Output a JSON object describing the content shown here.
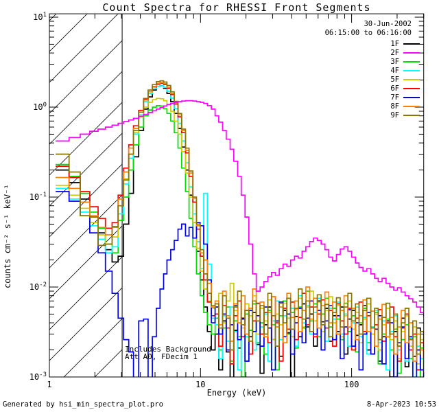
{
  "title": "Count Spectra for RHESSI Front Segments",
  "header": {
    "date": "30-Jun-2002",
    "time_range": "06:15:00 to 06:16:00"
  },
  "annotations": {
    "line1": "Includes Background",
    "line2": "Att A0, FDecim 1"
  },
  "footer": {
    "left": "Generated by hsi_min_spectra_plot.pro",
    "right": "8-Apr-2023 10:53"
  },
  "chart_data": {
    "type": "line",
    "mode": "histogram-steps",
    "title": "Count Spectra for RHESSI Front Segments",
    "xlabel": "Energy (keV)",
    "ylabel": "counts cm⁻² s⁻¹ keV⁻¹",
    "xscale": "log",
    "yscale": "log",
    "grid": false,
    "legend_position": "top-right",
    "xlim": [
      1,
      300
    ],
    "ylim": [
      0.001,
      10.9
    ],
    "x_ticks": [
      {
        "label": "1",
        "value": 1
      },
      {
        "label": "10",
        "value": 10
      },
      {
        "label": "100",
        "value": 100
      }
    ],
    "y_ticks": [
      {
        "base": "10",
        "exp": "1",
        "value": 10
      },
      {
        "base": "10",
        "exp": "0",
        "value": 1
      },
      {
        "base": "10",
        "exp": "-1",
        "value": 0.1
      },
      {
        "base": "10",
        "exp": "-2",
        "value": 0.01
      },
      {
        "base": "10",
        "exp": "-3",
        "value": 0.001
      }
    ],
    "hatched_region_kev": [
      1,
      3.03
    ],
    "draw_order": [
      "1F",
      "3F",
      "4F",
      "5F",
      "6F",
      "7F",
      "8F",
      "9F",
      "2F"
    ],
    "energies_kev": [
      1.1,
      1.35,
      1.6,
      1.85,
      2.1,
      2.35,
      2.6,
      2.85,
      3.1,
      3.35,
      3.6,
      3.9,
      4.2,
      4.5,
      4.8,
      5.1,
      5.4,
      5.7,
      6.0,
      6.35,
      6.7,
      7.1,
      7.5,
      7.95,
      8.4,
      8.9,
      9.4,
      9.95,
      10.5,
      11.1,
      11.8,
      12.5,
      13.2,
      14.0,
      14.8,
      15.7,
      16.6,
      17.6,
      18.6,
      19.7,
      20.9,
      22.1,
      23.4,
      24.8,
      26.3,
      27.9,
      29.5,
      31.3,
      33.2,
      35.2,
      37.3,
      39.5,
      41.9,
      44.4,
      47.0,
      49.8,
      52.8,
      56.0,
      59.3,
      62.9,
      66.6,
      70.6,
      74.9,
      79.4,
      84.1,
      89.1,
      94.5,
      100,
      106,
      112,
      119,
      126,
      134,
      142,
      150,
      159,
      169,
      179,
      190,
      201,
      213,
      226,
      239,
      254,
      269,
      285,
      300
    ],
    "series": [
      {
        "name": "1F",
        "color": "#000000",
        "values": [
          0.2,
          0.145,
          0.095,
          0.06,
          0.04,
          0.026,
          0.019,
          0.022,
          0.05,
          0.11,
          0.28,
          0.55,
          0.95,
          1.3,
          1.55,
          1.7,
          1.72,
          1.62,
          1.42,
          1.15,
          0.85,
          0.58,
          0.36,
          0.2,
          0.105,
          0.052,
          0.025,
          0.012,
          0.006,
          0.0032,
          0.002,
          0.003,
          0.0012,
          0.0042,
          0.0019,
          0.0008,
          0.0033,
          0.0021,
          0.0045,
          0.0015,
          0.0028,
          0.0052,
          0.0023,
          0.0011,
          0.0038,
          0.006,
          0.0026,
          0.0042,
          0.0017,
          0.0055,
          0.0031,
          0.0009,
          0.0047,
          0.0028,
          0.0065,
          0.0036,
          0.005,
          0.0022,
          0.007,
          0.0041,
          0.0058,
          0.0025,
          0.0048,
          0.0032,
          0.006,
          0.0018,
          0.0044,
          0.0055,
          0.0029,
          0.0038,
          0.0062,
          0.002,
          0.0035,
          0.005,
          0.0015,
          0.0028,
          0.0042,
          0.001,
          0.0032,
          0.0022,
          0.0045,
          0.0013,
          0.0026,
          0.0017,
          0.0035,
          0.0008,
          0.0019
        ]
      },
      {
        "name": "2F",
        "color": "#FF00FF",
        "values": [
          0.42,
          0.46,
          0.5,
          0.54,
          0.57,
          0.6,
          0.63,
          0.66,
          0.69,
          0.72,
          0.75,
          0.79,
          0.83,
          0.87,
          0.91,
          0.95,
          0.99,
          1.03,
          1.07,
          1.1,
          1.13,
          1.15,
          1.17,
          1.18,
          1.18,
          1.17,
          1.15,
          1.13,
          1.1,
          1.04,
          0.95,
          0.8,
          0.68,
          0.55,
          0.44,
          0.34,
          0.25,
          0.17,
          0.105,
          0.06,
          0.03,
          0.014,
          0.009,
          0.01,
          0.0115,
          0.013,
          0.0145,
          0.0135,
          0.016,
          0.018,
          0.017,
          0.02,
          0.022,
          0.021,
          0.025,
          0.028,
          0.032,
          0.035,
          0.033,
          0.03,
          0.026,
          0.0215,
          0.0195,
          0.023,
          0.0265,
          0.028,
          0.025,
          0.0215,
          0.0185,
          0.0165,
          0.015,
          0.016,
          0.014,
          0.0125,
          0.0115,
          0.0125,
          0.011,
          0.01,
          0.0092,
          0.0098,
          0.0088,
          0.008,
          0.0074,
          0.0068,
          0.006,
          0.0052,
          0.0047
        ]
      },
      {
        "name": "3F",
        "color": "#00E000",
        "values": [
          0.23,
          0.17,
          0.11,
          0.068,
          0.045,
          0.03,
          0.024,
          0.055,
          0.1,
          0.2,
          0.38,
          0.6,
          0.8,
          0.93,
          1.0,
          1.04,
          1.03,
          0.96,
          0.85,
          0.7,
          0.52,
          0.35,
          0.21,
          0.115,
          0.058,
          0.028,
          0.014,
          0.008,
          0.0052,
          0.0038,
          0.003,
          0.0045,
          0.002,
          0.0035,
          0.006,
          0.0015,
          0.0042,
          0.0028,
          0.001,
          0.005,
          0.0033,
          0.0065,
          0.0024,
          0.004,
          0.0018,
          0.0055,
          0.0038,
          0.0012,
          0.0048,
          0.007,
          0.003,
          0.0052,
          0.0021,
          0.006,
          0.0035,
          0.009,
          0.0042,
          0.0065,
          0.0028,
          0.005,
          0.0075,
          0.0036,
          0.0058,
          0.0044,
          0.0026,
          0.0066,
          0.0032,
          0.0048,
          0.0019,
          0.004,
          0.0058,
          0.0024,
          0.0036,
          0.0052,
          0.0014,
          0.003,
          0.0044,
          0.002,
          0.0034,
          0.0011,
          0.0026,
          0.0038,
          0.0016,
          0.0028,
          0.0009,
          0.0021,
          0.0013
        ]
      },
      {
        "name": "4F",
        "color": "#00FFFF",
        "values": [
          0.125,
          0.095,
          0.068,
          0.048,
          0.034,
          0.024,
          0.028,
          0.065,
          0.14,
          0.27,
          0.5,
          0.82,
          1.15,
          1.42,
          1.6,
          1.7,
          1.72,
          1.66,
          1.5,
          1.26,
          0.96,
          0.66,
          0.42,
          0.24,
          0.13,
          0.065,
          0.032,
          0.016,
          0.11,
          0.018,
          0.0045,
          0.0038,
          0.0016,
          0.0048,
          0.0025,
          0.006,
          0.0032,
          0.0012,
          0.0044,
          0.0028,
          0.0055,
          0.002,
          0.0065,
          0.0036,
          0.005,
          0.0015,
          0.0042,
          0.007,
          0.0026,
          0.0048,
          0.0034,
          0.0058,
          0.0022,
          0.008,
          0.004,
          0.0062,
          0.003,
          0.0052,
          0.0075,
          0.0038,
          0.0025,
          0.0058,
          0.0044,
          0.0068,
          0.003,
          0.005,
          0.0022,
          0.004,
          0.006,
          0.0028,
          0.0046,
          0.0018,
          0.0036,
          0.0055,
          0.0024,
          0.0042,
          0.0012,
          0.0032,
          0.0048,
          0.002,
          0.0035,
          0.0015,
          0.0027,
          0.001,
          0.0022,
          0.0016,
          0.0008
        ]
      },
      {
        "name": "5F",
        "color": "#CDCD00",
        "values": [
          0.135,
          0.105,
          0.075,
          0.052,
          0.038,
          0.03,
          0.036,
          0.08,
          0.16,
          0.3,
          0.52,
          0.78,
          1.0,
          1.13,
          1.21,
          1.25,
          1.24,
          1.18,
          1.07,
          0.9,
          0.7,
          0.5,
          0.32,
          0.185,
          0.1,
          0.052,
          0.027,
          0.015,
          0.0095,
          0.007,
          0.0058,
          0.006,
          0.0085,
          0.004,
          0.007,
          0.011,
          0.0055,
          0.009,
          0.0035,
          0.0065,
          0.0048,
          0.008,
          0.003,
          0.0058,
          0.0042,
          0.0072,
          0.0026,
          0.005,
          0.0038,
          0.0066,
          0.0045,
          0.0028,
          0.0056,
          0.0075,
          0.0036,
          0.006,
          0.009,
          0.0042,
          0.0068,
          0.0032,
          0.0055,
          0.0078,
          0.004,
          0.0062,
          0.0028,
          0.0048,
          0.007,
          0.0034,
          0.0052,
          0.0024,
          0.0044,
          0.0065,
          0.003,
          0.005,
          0.002,
          0.0038,
          0.0058,
          0.0026,
          0.0042,
          0.0016,
          0.0032,
          0.0048,
          0.0022,
          0.0036,
          0.0014,
          0.0026,
          0.0018
        ]
      },
      {
        "name": "6F",
        "color": "#FF0000",
        "values": [
          0.22,
          0.165,
          0.115,
          0.078,
          0.058,
          0.045,
          0.052,
          0.105,
          0.21,
          0.38,
          0.62,
          0.92,
          1.22,
          1.48,
          1.68,
          1.8,
          1.84,
          1.78,
          1.62,
          1.38,
          1.08,
          0.78,
          0.52,
          0.31,
          0.17,
          0.088,
          0.044,
          0.022,
          0.012,
          0.0068,
          0.0048,
          0.005,
          0.0022,
          0.0062,
          0.0035,
          0.0014,
          0.0048,
          0.007,
          0.0028,
          0.0055,
          0.0018,
          0.0042,
          0.0066,
          0.003,
          0.0052,
          0.0024,
          0.0078,
          0.004,
          0.0015,
          0.0058,
          0.0034,
          0.0068,
          0.0026,
          0.0046,
          0.0085,
          0.0038,
          0.006,
          0.0028,
          0.005,
          0.0072,
          0.0035,
          0.0055,
          0.0022,
          0.0065,
          0.0042,
          0.003,
          0.0058,
          0.002,
          0.0045,
          0.0068,
          0.0032,
          0.0048,
          0.0018,
          0.0038,
          0.0056,
          0.0025,
          0.004,
          0.006,
          0.0028,
          0.0015,
          0.0035,
          0.005,
          0.002,
          0.003,
          0.0012,
          0.0024,
          0.0016
        ]
      },
      {
        "name": "7F",
        "color": "#0000EE",
        "values": [
          0.115,
          0.09,
          0.062,
          0.04,
          0.024,
          0.015,
          0.0085,
          0.0045,
          0.0026,
          0.0019,
          0.0009,
          0.0042,
          0.0044,
          0.0008,
          0.0028,
          0.0058,
          0.0095,
          0.014,
          0.02,
          0.026,
          0.033,
          0.044,
          0.05,
          0.037,
          0.046,
          0.035,
          0.052,
          0.048,
          0.03,
          0.012,
          0.004,
          0.006,
          0.003,
          0.005,
          0.002,
          0.0038,
          0.0062,
          0.0026,
          0.0044,
          0.0015,
          0.0055,
          0.0032,
          0.0048,
          0.0022,
          0.006,
          0.0035,
          0.0012,
          0.0042,
          0.0068,
          0.0028,
          0.005,
          0.0018,
          0.004,
          0.0058,
          0.0024,
          0.0045,
          0.007,
          0.003,
          0.0055,
          0.002,
          0.0042,
          0.0062,
          0.0026,
          0.0048,
          0.0016,
          0.0036,
          0.0056,
          0.0022,
          0.004,
          0.0012,
          0.003,
          0.0052,
          0.0018,
          0.0034,
          0.0048,
          0.0014,
          0.0028,
          0.004,
          0.001,
          0.0024,
          0.0036,
          0.0016,
          0.0028,
          0.0008,
          0.002,
          0.0012,
          0.0006
        ]
      },
      {
        "name": "8F",
        "color": "#FF8000",
        "values": [
          0.165,
          0.125,
          0.088,
          0.062,
          0.046,
          0.038,
          0.046,
          0.095,
          0.19,
          0.35,
          0.58,
          0.88,
          1.2,
          1.48,
          1.7,
          1.84,
          1.88,
          1.82,
          1.66,
          1.42,
          1.12,
          0.82,
          0.55,
          0.33,
          0.185,
          0.096,
          0.048,
          0.024,
          0.02,
          0.011,
          0.006,
          0.007,
          0.0038,
          0.009,
          0.0048,
          0.0025,
          0.0065,
          0.004,
          0.008,
          0.003,
          0.0058,
          0.0095,
          0.0042,
          0.0068,
          0.0028,
          0.0052,
          0.0078,
          0.0036,
          0.006,
          0.0024,
          0.0085,
          0.0046,
          0.007,
          0.0032,
          0.0055,
          0.01,
          0.0044,
          0.0075,
          0.0035,
          0.0062,
          0.0088,
          0.004,
          0.0068,
          0.003,
          0.0055,
          0.008,
          0.0036,
          0.0058,
          0.0026,
          0.0048,
          0.0072,
          0.0032,
          0.0054,
          0.0022,
          0.0044,
          0.0064,
          0.0028,
          0.0046,
          0.0018,
          0.0036,
          0.0055,
          0.0024,
          0.004,
          0.0015,
          0.003,
          0.002,
          0.0011
        ]
      },
      {
        "name": "9F",
        "color": "#8B7500",
        "values": [
          0.3,
          0.19,
          0.062,
          0.06,
          0.029,
          0.03,
          0.047,
          0.08,
          0.155,
          0.3,
          0.55,
          0.88,
          1.25,
          1.55,
          1.78,
          1.92,
          1.96,
          1.9,
          1.74,
          1.48,
          1.16,
          0.85,
          0.57,
          0.35,
          0.195,
          0.1,
          0.05,
          0.026,
          0.014,
          0.0085,
          0.0062,
          0.0065,
          0.0035,
          0.008,
          0.0045,
          0.002,
          0.006,
          0.009,
          0.0038,
          0.0055,
          0.0025,
          0.007,
          0.0042,
          0.0062,
          0.003,
          0.0085,
          0.0048,
          0.0022,
          0.0066,
          0.004,
          0.0075,
          0.0034,
          0.0058,
          0.0095,
          0.0044,
          0.007,
          0.0032,
          0.006,
          0.0082,
          0.0038,
          0.0064,
          0.0028,
          0.0052,
          0.0076,
          0.0036,
          0.006,
          0.0085,
          0.0042,
          0.0065,
          0.003,
          0.0055,
          0.0075,
          0.0035,
          0.0058,
          0.0026,
          0.0046,
          0.0066,
          0.003,
          0.005,
          0.0022,
          0.004,
          0.0058,
          0.0026,
          0.0042,
          0.0018,
          0.0032,
          0.0022
        ]
      }
    ]
  }
}
